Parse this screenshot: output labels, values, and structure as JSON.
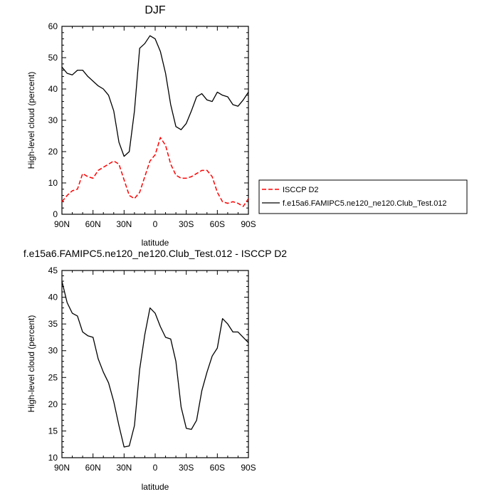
{
  "colors": {
    "model": "#000000",
    "obs": "#ff0000",
    "frame": "#000000"
  },
  "chart_data": [
    {
      "type": "line",
      "title": "DJF",
      "xlabel": "latitude",
      "ylabel": "High-level cloud (percent)",
      "xlim": [
        90,
        -90
      ],
      "ylim": [
        0,
        60
      ],
      "x_ticks": [
        {
          "value": 90,
          "label": "90N"
        },
        {
          "value": 60,
          "label": "60N"
        },
        {
          "value": 30,
          "label": "30N"
        },
        {
          "value": 0,
          "label": "0"
        },
        {
          "value": -30,
          "label": "30S"
        },
        {
          "value": -60,
          "label": "60S"
        },
        {
          "value": -90,
          "label": "90S"
        }
      ],
      "y_ticks": [
        0,
        10,
        20,
        30,
        40,
        50,
        60
      ],
      "legend_position": "right",
      "series": [
        {
          "name": "ISCCP D2",
          "style": "dashed",
          "color": "#ff0000",
          "x": [
            90,
            85,
            80,
            75,
            70,
            65,
            60,
            55,
            50,
            45,
            40,
            35,
            30,
            25,
            20,
            15,
            10,
            5,
            0,
            -5,
            -10,
            -15,
            -20,
            -25,
            -30,
            -35,
            -40,
            -45,
            -50,
            -55,
            -60,
            -65,
            -70,
            -75,
            -80,
            -85,
            -90
          ],
          "y": [
            4,
            6,
            7.5,
            8,
            13,
            12,
            11.5,
            14,
            15,
            16,
            17,
            16,
            11,
            6,
            5,
            7,
            12,
            17,
            19,
            24.5,
            22,
            16,
            12.5,
            11.5,
            11.5,
            12,
            13,
            14,
            14,
            12,
            7,
            4,
            3.5,
            4,
            3.5,
            2.5,
            5
          ]
        },
        {
          "name": "f.e15a6.FAMIPC5.ne120_ne120.Club_Test.012",
          "style": "solid",
          "color": "#000000",
          "x": [
            90,
            85,
            80,
            75,
            70,
            65,
            60,
            55,
            50,
            45,
            40,
            35,
            30,
            25,
            20,
            15,
            10,
            5,
            0,
            -5,
            -10,
            -15,
            -20,
            -25,
            -30,
            -35,
            -40,
            -45,
            -50,
            -55,
            -60,
            -65,
            -70,
            -75,
            -80,
            -85,
            -90
          ],
          "y": [
            47,
            45,
            44.5,
            46,
            46,
            44,
            42.5,
            41,
            40,
            38,
            33,
            23,
            18.5,
            20,
            33,
            53,
            54.5,
            57,
            56,
            52,
            45,
            35,
            28,
            27,
            29,
            33,
            37.5,
            38.5,
            36.5,
            36,
            39,
            38,
            37.5,
            35,
            34.5,
            36.5,
            39
          ]
        }
      ]
    },
    {
      "type": "line",
      "title": "f.e15a6.FAMIPC5.ne120_ne120.Club_Test.012 - ISCCP D2",
      "xlabel": "latitude",
      "ylabel": "High-level cloud (percent)",
      "xlim": [
        90,
        -90
      ],
      "ylim": [
        10,
        45
      ],
      "x_ticks": [
        {
          "value": 90,
          "label": "90N"
        },
        {
          "value": 60,
          "label": "60N"
        },
        {
          "value": 30,
          "label": "30N"
        },
        {
          "value": 0,
          "label": "0"
        },
        {
          "value": -30,
          "label": "30S"
        },
        {
          "value": -60,
          "label": "60S"
        },
        {
          "value": -90,
          "label": "90S"
        }
      ],
      "y_ticks": [
        10,
        15,
        20,
        25,
        30,
        35,
        40,
        45
      ],
      "series": [
        {
          "style": "solid",
          "color": "#000000",
          "x": [
            90,
            85,
            80,
            75,
            70,
            65,
            60,
            55,
            50,
            45,
            40,
            35,
            30,
            25,
            20,
            15,
            10,
            5,
            0,
            -5,
            -10,
            -15,
            -20,
            -25,
            -30,
            -35,
            -40,
            -45,
            -50,
            -55,
            -60,
            -65,
            -70,
            -75,
            -80,
            -85,
            -90
          ],
          "y": [
            43,
            39,
            37,
            36.5,
            33.5,
            32.8,
            32.5,
            28.5,
            26,
            24,
            20.5,
            16,
            12,
            12.2,
            16,
            26.5,
            33,
            38,
            37,
            34.5,
            32.5,
            32.2,
            28,
            19.5,
            15.5,
            15.3,
            17,
            22.5,
            26,
            29,
            30.5,
            36,
            35,
            33.5,
            33.5,
            32.5,
            31.5
          ]
        }
      ]
    }
  ]
}
